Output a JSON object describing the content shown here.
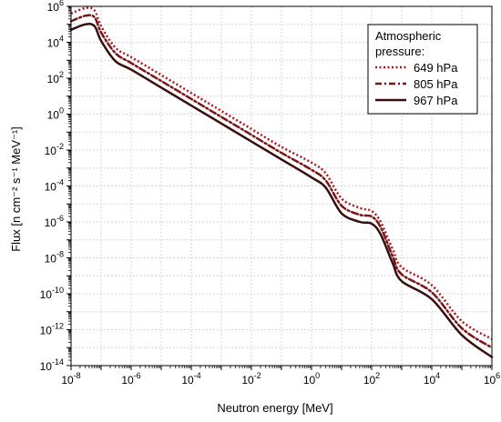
{
  "chart_data": {
    "type": "line",
    "xlabel": "Neutron energy [MeV]",
    "ylabel": "Flux [n cm⁻² s⁻¹ MeV⁻¹]",
    "x_scale": "log",
    "y_scale": "log",
    "xlim": [
      1e-08,
      1000000.0
    ],
    "ylim": [
      1e-14,
      1000000.0
    ],
    "x_tick_labels": [
      "10^-8",
      "10^-6",
      "10^-4",
      "10^-2",
      "10^0",
      "10^2",
      "10^4",
      "10^6"
    ],
    "y_tick_labels": [
      "10^-14",
      "10^-12",
      "10^-10",
      "10^-8",
      "10^-6",
      "10^-4",
      "10^-2",
      "10^0",
      "10^2",
      "10^4",
      "10^6"
    ],
    "grid": true,
    "legend": {
      "title_line1": "Atmospheric",
      "title_line2": "pressure:",
      "placement": "top-right"
    },
    "series": [
      {
        "name": "649 hPa",
        "color": "#b0171f",
        "dash": "dotted",
        "x": [
          1e-08,
          3e-08,
          6e-08,
          1e-07,
          3e-07,
          1e-06,
          1e-05,
          0.0001,
          0.001,
          0.01,
          0.1,
          1,
          3,
          10,
          40,
          100,
          200,
          500,
          1000,
          10000.0,
          100000.0,
          1000000.0
        ],
        "y": [
          400000,
          800000,
          600000,
          80000,
          5000,
          1500,
          150,
          15,
          1.5,
          0.15,
          0.015,
          0.002,
          0.0005,
          2e-05,
          6e-06,
          4e-06,
          1e-06,
          3e-08,
          3e-09,
          3e-10,
          3e-12,
          3e-13
        ]
      },
      {
        "name": "805 hPa",
        "color": "#7a1515",
        "dash": "dashdot",
        "x": [
          1e-08,
          3e-08,
          6e-08,
          1e-07,
          3e-07,
          1e-06,
          1e-05,
          0.0001,
          0.001,
          0.01,
          0.1,
          1,
          3,
          10,
          40,
          100,
          200,
          500,
          1000,
          10000.0,
          100000.0,
          1000000.0
        ],
        "y": [
          150000,
          300000,
          250000,
          35000,
          2500,
          700,
          70,
          7,
          0.7,
          0.07,
          0.007,
          0.0008,
          0.0002,
          8e-06,
          2.5e-06,
          2e-06,
          5e-07,
          1.2e-08,
          1.2e-09,
          1.2e-10,
          1.2e-12,
          1e-13
        ]
      },
      {
        "name": "967 hPa",
        "color": "#3a0d0d",
        "dash": "solid",
        "x": [
          1e-08,
          3e-08,
          6e-08,
          1e-07,
          3e-07,
          1e-06,
          1e-05,
          0.0001,
          0.001,
          0.01,
          0.1,
          1,
          3,
          10,
          40,
          100,
          200,
          500,
          1000,
          10000.0,
          100000.0,
          1000000.0
        ],
        "y": [
          50000,
          100000,
          80000,
          12000,
          900,
          300,
          30,
          3,
          0.3,
          0.03,
          0.003,
          0.0003,
          8e-05,
          3e-06,
          1e-06,
          8e-07,
          2e-07,
          5e-09,
          5e-10,
          5e-11,
          5e-13,
          3e-14
        ]
      }
    ]
  }
}
